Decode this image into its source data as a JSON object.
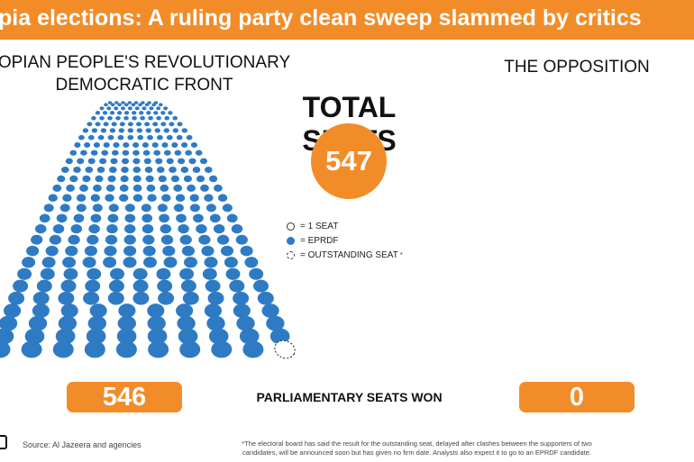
{
  "header": {
    "title": "pia elections: A ruling party clean sweep slammed by critics"
  },
  "left_party": {
    "line1": "OPIAN PEOPLE'S REVOLUTIONARY",
    "line2": "DEMOCRATIC FRONT"
  },
  "right_party": {
    "label": "THE OPPOSITION"
  },
  "total": {
    "title": "TOTAL SEATS",
    "value": "547"
  },
  "legend": {
    "seat": "= 1 SEAT",
    "eprdf": "= EPRDF",
    "outstanding": "= OUTSTANDING SEAT",
    "outstanding_mark": "*"
  },
  "results": {
    "eprdf_seats": "546",
    "label": "PARLIAMENTARY SEATS WON",
    "opposition_seats": "0"
  },
  "footer": {
    "source": "Source: Al Jazeera and agencies",
    "note_line1": "*The electoral board has said the result for the outstanding seat, delayed after clashes between the supporters of two",
    "note_line2": "candidates, will be announced soon but has given no firm date. Analysts also expect it to go to an EPRDF candidate."
  },
  "colors": {
    "accent": "#f28c28",
    "eprdf": "#2e7bc4",
    "text": "#111111"
  },
  "icons": {
    "logo": "al-jazeera-logo-icon"
  }
}
